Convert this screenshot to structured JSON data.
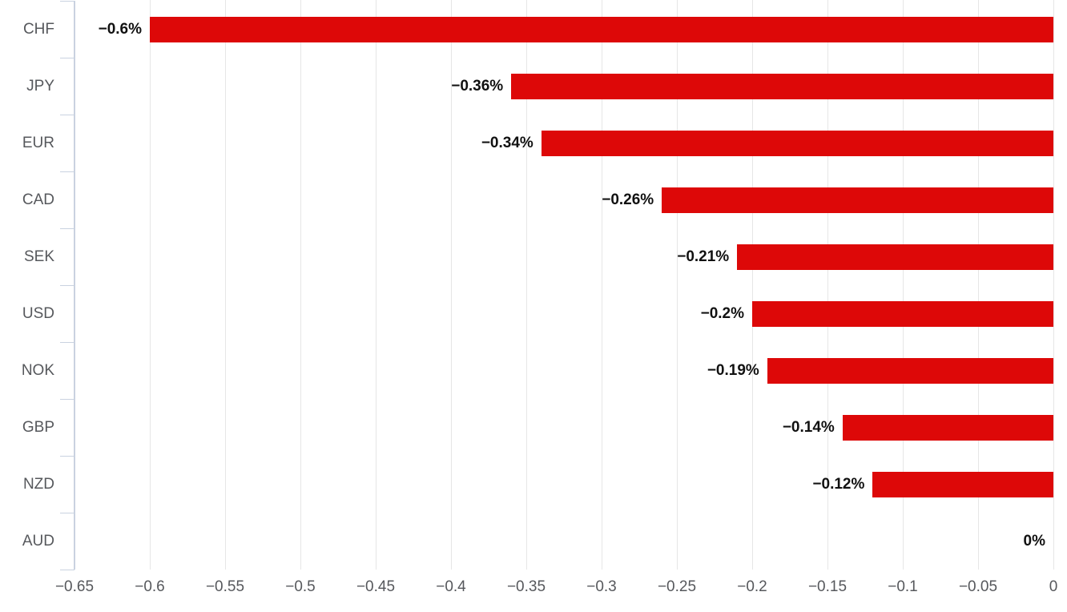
{
  "chart_data": {
    "type": "bar",
    "orientation": "horizontal",
    "title": "",
    "xlabel": "",
    "ylabel": "",
    "categories": [
      "CHF",
      "JPY",
      "EUR",
      "CAD",
      "SEK",
      "USD",
      "NOK",
      "GBP",
      "NZD",
      "AUD"
    ],
    "values": [
      -0.6,
      -0.36,
      -0.34,
      -0.26,
      -0.21,
      -0.2,
      -0.19,
      -0.14,
      -0.12,
      0
    ],
    "value_labels": [
      "−0.6%",
      "−0.36%",
      "−0.34%",
      "−0.26%",
      "−0.21%",
      "−0.2%",
      "−0.19%",
      "−0.14%",
      "−0.12%",
      "0%"
    ],
    "xlim": [
      -0.65,
      0
    ],
    "x_ticks": [
      -0.65,
      -0.6,
      -0.55,
      -0.5,
      -0.45,
      -0.4,
      -0.35,
      -0.3,
      -0.25,
      -0.2,
      -0.15,
      -0.1,
      -0.05,
      0
    ],
    "x_tick_labels": [
      "−0.65",
      "−0.6",
      "−0.55",
      "−0.5",
      "−0.45",
      "−0.4",
      "−0.35",
      "−0.3",
      "−0.25",
      "−0.2",
      "−0.15",
      "−0.1",
      "−0.05",
      "0"
    ],
    "grid": true,
    "legend": "none",
    "bar_color": "#dd0808",
    "gridline_color": "#e6e6e6",
    "axis_line_color": "#c9d2e0",
    "tick_label_color": "#56585c",
    "category_label_color": "#56585c",
    "value_label_color": "#111111",
    "background_color": "#ffffff"
  }
}
